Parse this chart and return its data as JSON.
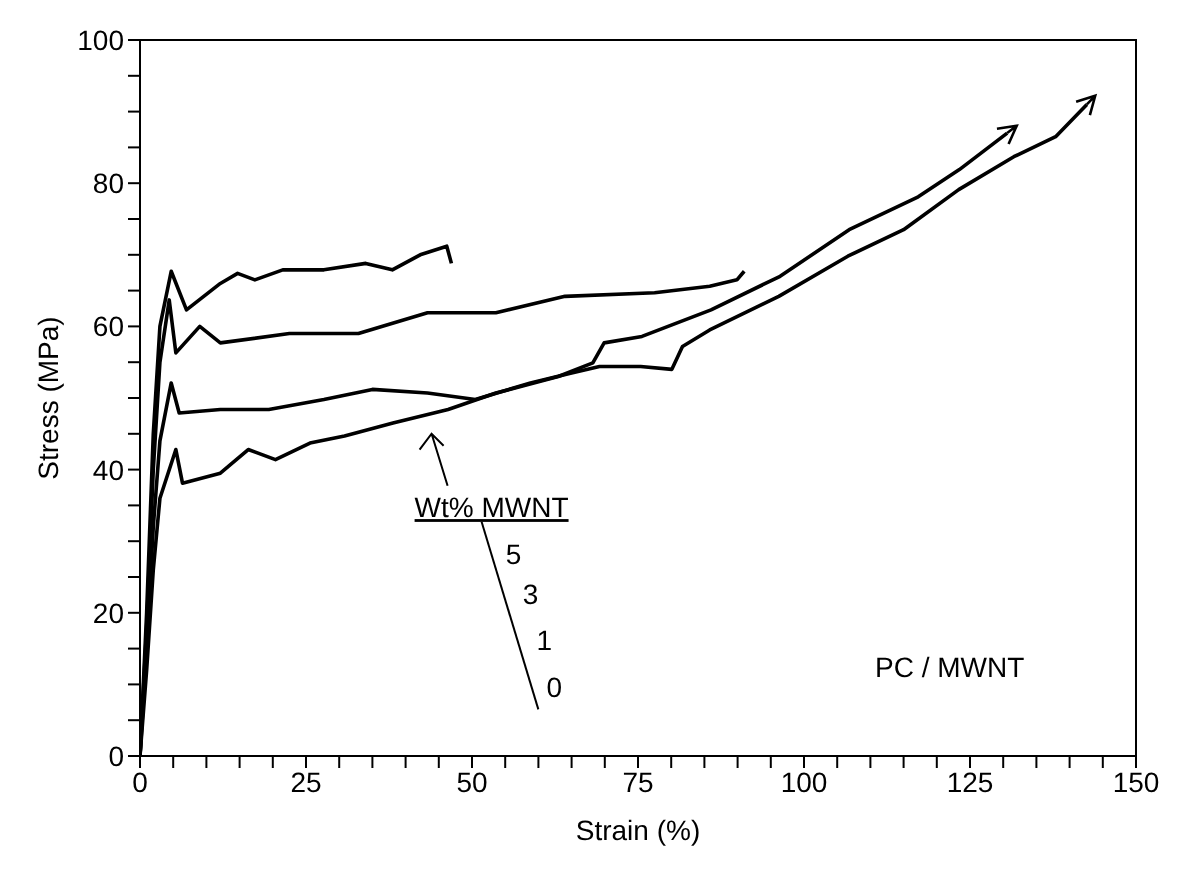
{
  "chart_data": {
    "type": "line",
    "xlabel": "Strain (%)",
    "ylabel": "Stress (MPa)",
    "xlim": [
      0,
      150
    ],
    "xticks": [
      0,
      {
        "value": 5,
        "label": null
      },
      {
        "value": 10,
        "label": null
      },
      {
        "value": 15,
        "label": null
      },
      {
        "value": 20,
        "label": null
      },
      25,
      {
        "value": 30,
        "label": null
      },
      {
        "value": 35,
        "label": null
      },
      {
        "value": 40,
        "label": null
      },
      {
        "value": 45,
        "label": null
      },
      50,
      {
        "value": 55,
        "label": null
      },
      {
        "value": 60,
        "label": null
      },
      {
        "value": 65,
        "label": null
      },
      {
        "value": 70,
        "label": null
      },
      75,
      {
        "value": 80,
        "label": null
      },
      {
        "value": 85,
        "label": null
      },
      {
        "value": 90,
        "label": null
      },
      {
        "value": 95,
        "label": null
      },
      100,
      {
        "value": 105,
        "label": null
      },
      {
        "value": 110,
        "label": null
      },
      {
        "value": 115,
        "label": null
      },
      {
        "value": 120,
        "label": null
      },
      125,
      {
        "value": 130,
        "label": null
      },
      {
        "value": 135,
        "label": null
      },
      {
        "value": 140,
        "label": null
      },
      {
        "value": 145,
        "label": null
      },
      150
    ],
    "ylim": [
      0,
      100
    ],
    "yticks": [
      0,
      {
        "value": 5,
        "label": null
      },
      {
        "value": 10,
        "label": null
      },
      {
        "value": 15,
        "label": null
      },
      20,
      {
        "value": 25,
        "label": null
      },
      {
        "value": 30,
        "label": null
      },
      {
        "value": 35,
        "label": null
      },
      40,
      {
        "value": 45,
        "label": null
      },
      {
        "value": 50,
        "label": null
      },
      {
        "value": 55,
        "label": null
      },
      60,
      {
        "value": 65,
        "label": null
      },
      {
        "value": 70,
        "label": null
      },
      {
        "value": 75,
        "label": null
      },
      80,
      {
        "value": 85,
        "label": null
      },
      {
        "value": 90,
        "label": null
      },
      {
        "value": 95,
        "label": null
      },
      100
    ],
    "grid": false,
    "legend": false,
    "marker": "none",
    "line_style": "solid",
    "series": [
      {
        "color": "#000000",
        "x": [
          0,
          1,
          2,
          3,
          4.7,
          7,
          12.1,
          14.7,
          17.3,
          21.5,
          27.7,
          34,
          38,
          42.2,
          46.2,
          46.9
        ],
        "values": [
          0,
          20,
          45,
          60,
          67.7,
          62.3,
          66,
          67.4,
          66.5,
          67.9,
          67.9,
          68.8,
          67.9,
          70,
          71.2,
          68.8
        ]
      },
      {
        "color": "#000000",
        "x": [
          0,
          1,
          2,
          3,
          4.4,
          5.4,
          9,
          12.1,
          22.5,
          32.9,
          43.3,
          53.6,
          64,
          77.5,
          85.8,
          89.9,
          91
        ],
        "values": [
          0,
          18,
          40,
          55,
          63.7,
          56.3,
          60,
          57.7,
          59,
          59,
          61.9,
          61.9,
          64.2,
          64.7,
          65.6,
          66.5,
          67.7
        ]
      },
      {
        "color": "#000000",
        "x": [
          0,
          1,
          2,
          3,
          4.7,
          5.9,
          12.1,
          19.4,
          27.7,
          35,
          43.3,
          50.5,
          58.8,
          65,
          69.2,
          75.4,
          80.1,
          81.7,
          85.8,
          96.2,
          106.6,
          115,
          123.3,
          131.6,
          137.9,
          142.6
        ],
        "values": [
          0,
          15,
          32,
          44,
          52.1,
          47.9,
          48.4,
          48.4,
          49.8,
          51.2,
          50.7,
          49.8,
          52.1,
          53.5,
          54.4,
          54.4,
          54,
          57.2,
          59.5,
          64.2,
          69.8,
          73.5,
          79.1,
          83.7,
          86.5,
          91
        ]
      },
      {
        "color": "#000000",
        "x": [
          0,
          1,
          2,
          3,
          5.4,
          6.4,
          12.1,
          16.3,
          20.4,
          25.6,
          30.8,
          38.1,
          46.4,
          53.6,
          63,
          68.2,
          69.9,
          75.6,
          86,
          96.4,
          106.8,
          117.2,
          123.4,
          130.6
        ],
        "values": [
          0,
          12,
          26,
          36,
          42.8,
          38.1,
          39.5,
          42.8,
          41.4,
          43.7,
          44.7,
          46.5,
          48.4,
          50.7,
          53,
          54.9,
          57.7,
          58.6,
          62.3,
          67,
          73.5,
          78.1,
          81.9,
          87
        ]
      }
    ],
    "annotations": [
      "Wt% MWNT",
      "5",
      "3",
      "1",
      "0",
      "PC / MWNT"
    ]
  }
}
